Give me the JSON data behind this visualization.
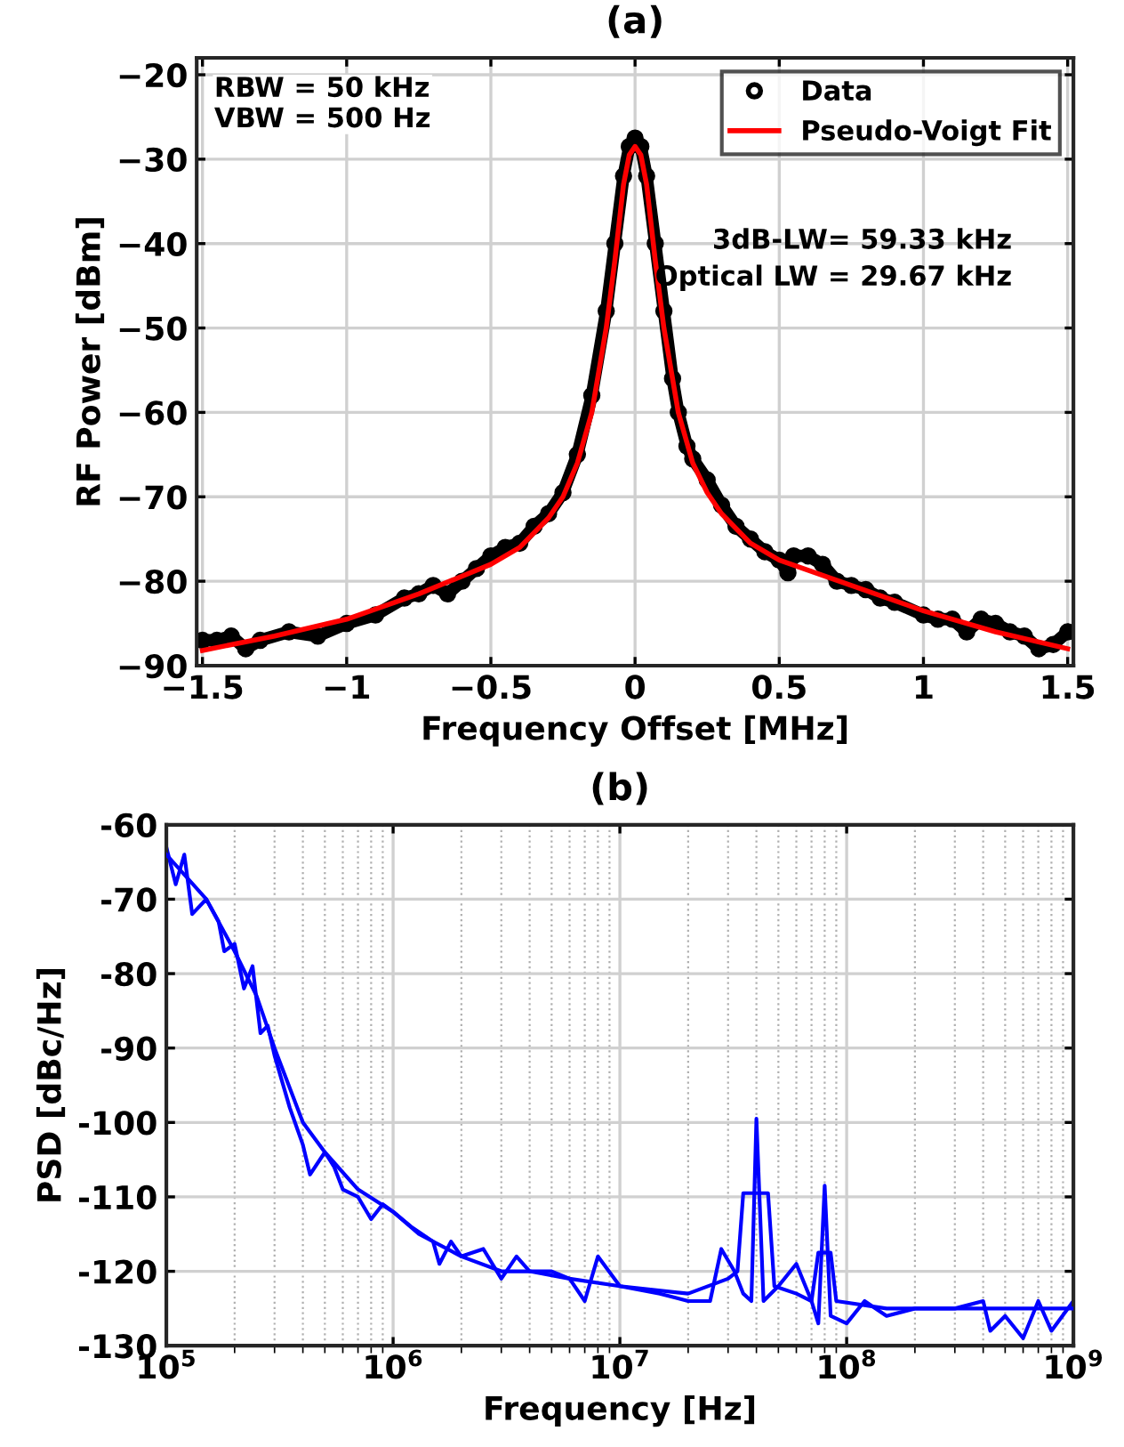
{
  "chart_data": [
    {
      "type": "line",
      "title": "(a)",
      "xlabel": "Frequency Offset [MHz]",
      "ylabel": "RF Power [dBm]",
      "xlim": [
        -1.52,
        1.52
      ],
      "xticks": [
        {
          "value": -1.5,
          "label": "−1.5"
        },
        {
          "value": -1,
          "label": "−1"
        },
        {
          "value": -0.5,
          "label": "−0.5"
        },
        0,
        0.5,
        1,
        1.5
      ],
      "ylim": [
        -90,
        -18
      ],
      "yticks": [
        {
          "value": -90,
          "label": "−90"
        },
        {
          "value": -80,
          "label": "−80"
        },
        {
          "value": -70,
          "label": "−70"
        },
        {
          "value": -60,
          "label": "−60"
        },
        {
          "value": -50,
          "label": "−50"
        },
        {
          "value": -40,
          "label": "−40"
        },
        {
          "value": -30,
          "label": "−30"
        },
        {
          "value": -20,
          "label": "−20"
        }
      ],
      "grid": true,
      "legend": "top right",
      "annotations": [
        "RBW = 50 kHz\nVBW = 500 Hz",
        "3dB-LW= 59.33 kHz\nOptical LW = 29.67 kHz"
      ],
      "series": [
        {
          "name": "Data",
          "color": "#000000",
          "marker": "circle",
          "x": [
            -1.5,
            -1.45,
            -1.4,
            -1.35,
            -1.3,
            -1.2,
            -1.1,
            -1,
            -0.9,
            -0.8,
            -0.75,
            -0.7,
            -0.65,
            -0.6,
            -0.55,
            -0.5,
            -0.45,
            -0.4,
            -0.35,
            -0.3,
            -0.25,
            -0.2,
            -0.15,
            -0.1,
            -0.07,
            -0.04,
            -0.02,
            0,
            0.02,
            0.04,
            0.07,
            0.1,
            0.13,
            0.15,
            0.18,
            0.2,
            0.25,
            0.3,
            0.35,
            0.4,
            0.45,
            0.5,
            0.53,
            0.55,
            0.6,
            0.65,
            0.7,
            0.75,
            0.8,
            0.85,
            0.9,
            1,
            1.05,
            1.1,
            1.15,
            1.2,
            1.25,
            1.3,
            1.35,
            1.4,
            1.45,
            1.5
          ],
          "values": [
            -87,
            -87,
            -86.5,
            -88,
            -87,
            -86,
            -86.5,
            -85,
            -84,
            -82,
            -81.5,
            -80.5,
            -81.5,
            -80,
            -78.5,
            -77,
            -76,
            -75.5,
            -73.5,
            -72,
            -69.5,
            -65,
            -58,
            -48,
            -40,
            -32,
            -28.5,
            -27.5,
            -28.5,
            -32,
            -40,
            -48,
            -56,
            -60,
            -64,
            -65.5,
            -68,
            -71,
            -73.5,
            -75,
            -76.5,
            -77.5,
            -79,
            -77,
            -77,
            -78,
            -80,
            -80.5,
            -81,
            -82,
            -82.5,
            -84,
            -84.5,
            -84.5,
            -86,
            -84.5,
            -85,
            -86,
            -86.5,
            -88,
            -87.5,
            -86
          ]
        },
        {
          "name": "Pseudo-Voigt Fit",
          "color": "#ff0000",
          "x": [
            -1.5,
            -1.25,
            -1,
            -0.75,
            -0.5,
            -0.4,
            -0.3,
            -0.25,
            -0.2,
            -0.15,
            -0.1,
            -0.07,
            -0.04,
            -0.02,
            0,
            0.02,
            0.04,
            0.07,
            0.1,
            0.15,
            0.2,
            0.25,
            0.3,
            0.4,
            0.5,
            0.75,
            1,
            1.25,
            1.5
          ],
          "values": [
            -88.2,
            -86.5,
            -84.5,
            -81.5,
            -78,
            -76,
            -72.5,
            -70,
            -66,
            -60,
            -50,
            -42,
            -33,
            -29.5,
            -28.5,
            -29.5,
            -33,
            -42,
            -50,
            -60,
            -66,
            -69.5,
            -72,
            -75.5,
            -77.5,
            -80.5,
            -83.5,
            -86,
            -88
          ]
        }
      ]
    },
    {
      "type": "line",
      "title": "(b)",
      "xlabel": "Frequency [Hz]",
      "ylabel": "PSD [dBc/Hz]",
      "log": "x",
      "xlim": [
        100000,
        1000000000
      ],
      "xticks": [
        {
          "value": 100000,
          "label": "10$^{5}$"
        },
        {
          "value": 1000000,
          "label": "10$^{6}$"
        },
        {
          "value": 10000000,
          "label": "10$^{7}$"
        },
        {
          "value": 100000000,
          "label": "10$^{8}$"
        },
        {
          "value": 1000000000,
          "label": "10$^{9}$"
        }
      ],
      "ylim": [
        -130,
        -60
      ],
      "yticks": [
        -130,
        -120,
        -110,
        -100,
        -90,
        -80,
        -70,
        -60
      ],
      "grid": true,
      "series": [
        {
          "color": "#0000ff",
          "x": [
            100000,
            110000,
            120000,
            130000,
            150000,
            170000,
            180000,
            200000,
            220000,
            240000,
            260000,
            280000,
            300000,
            350000,
            400000,
            430000,
            500000,
            550000,
            600000,
            700000,
            800000,
            900000,
            1000000,
            1200000,
            1500000,
            1600000,
            1800000,
            2000000,
            2500000,
            3000000,
            3500000,
            4000000,
            5000000,
            6000000,
            7000000,
            8000000,
            10000000,
            15000000,
            20000000,
            25000000,
            28000000,
            32000000,
            35000000,
            38000000,
            40000000,
            43000000,
            50000000,
            60000000,
            70000000,
            75000000,
            80000000,
            85000000,
            100000000,
            120000000,
            150000000,
            200000000,
            300000000,
            400000000,
            430000000,
            500000000,
            600000000,
            700000000,
            800000000,
            1000000000
          ],
          "values": [
            -63,
            -68,
            -64,
            -72,
            -70,
            -73,
            -77,
            -76,
            -82,
            -79,
            -88,
            -87,
            -91,
            -98,
            -103,
            -107,
            -104,
            -106,
            -109,
            -110,
            -113,
            -111,
            -112,
            -114,
            -116,
            -119,
            -116,
            -118,
            -117,
            -121,
            -118,
            -120,
            -120,
            -121,
            -124,
            -118,
            -122,
            -123,
            -124,
            -124,
            -117,
            -120,
            -123,
            -124,
            -99.5,
            -124,
            -122,
            -119,
            -124,
            -127,
            -108.5,
            -126,
            -127,
            -124,
            -126,
            -125,
            -125,
            -124,
            -128,
            -126,
            -129,
            -124,
            -128,
            -124
          ]
        },
        {
          "color": "#0000ff",
          "x": [
            100000,
            150000,
            200000,
            250000,
            300000,
            400000,
            500000,
            700000,
            1000000,
            1300000,
            2000000,
            3000000,
            4000000,
            6000000,
            10000000,
            20000000,
            30000000,
            33000000,
            35000000,
            45000000,
            48000000,
            60000000,
            70000000,
            75000000,
            85000000,
            90000000,
            150000000,
            300000000,
            1000000000
          ],
          "values": [
            -64,
            -70,
            -77,
            -83,
            -90,
            -100,
            -104,
            -109,
            -112,
            -115,
            -118,
            -120,
            -120,
            -121,
            -122,
            -123,
            -121,
            -120,
            -109.5,
            -109.5,
            -122,
            -123,
            -124,
            -117.5,
            -117.5,
            -124,
            -125,
            -125,
            -125
          ]
        }
      ]
    }
  ]
}
